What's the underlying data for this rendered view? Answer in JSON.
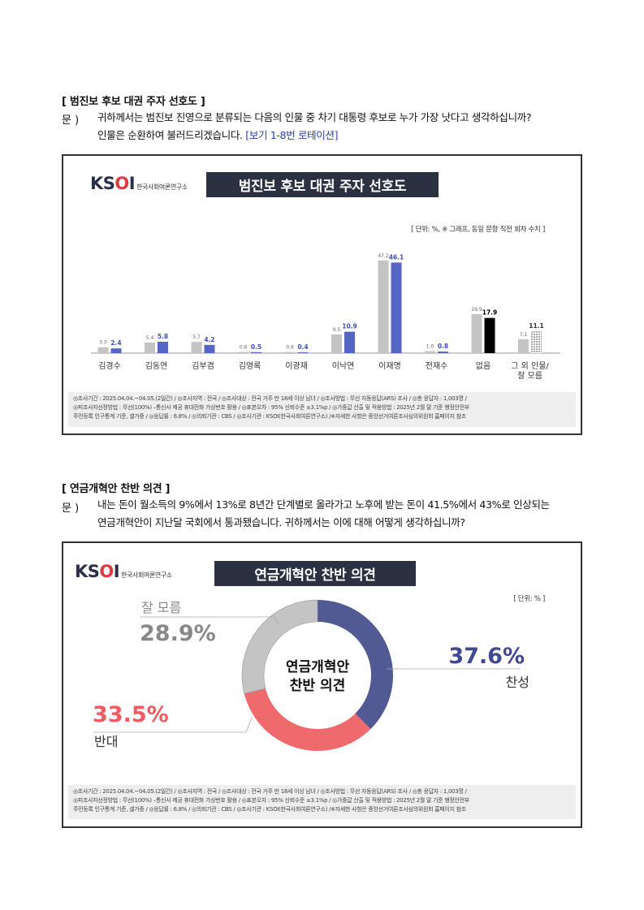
{
  "section1": {
    "title": "[ 범진보 후보 대권 주자 선호도 ]",
    "q_label": "문 )",
    "q_line1": "귀하께서는 범진보 진영으로 분류되는 다음의 인물 중 차기 대통령 후보로 누가 가장 낫다고 생각하십니까?",
    "q_line2_a": "인물은 순환하여 불러드리겠습니다. ",
    "q_line2_b": "[보기 1-8번 로테이션]"
  },
  "section2": {
    "title": "[ 연금개혁안 찬반 의견 ]",
    "q_label": "문 )",
    "q_line1": "내는 돈이 월소득의 9%에서 13%로 8년간 단계별로 올라가고 노후에 받는 돈이 41.5%에서 43%로 인상되는",
    "q_line2": "연금개혁안이 지난달 국회에서 통과됐습니다. 귀하께서는 이에 대해 어떻게 생각하십니까?"
  },
  "logo": {
    "main_k": "K",
    "main_s": "S",
    "main_o": "O",
    "main_i": "I",
    "sub": "한국사회여론연구소"
  },
  "footer": {
    "line1": "◎조사기간 : 2025.04.04.~04.05.(2일간) / ◎조사지역 : 전국 / ◎조사대상 : 전국 거주 만 18세 이상 남녀 / ◎조사방법 : 무선 자동응답(ARS) 조사 / ◎총 응답자 : 1,003명 /",
    "line2": "◎피조사자선정방법 : 무선(100%) –통신사 제공 휴대전화 가상번호 활용 / ◎표본오차 : 95% 신뢰수준 ±3.1%p / ◎가중값 산출 및 적용방법 : 2025년 2월 말 기준 행정안전부",
    "line3": "주민등록 인구통계 기준, 셀가중 / ◎응답률 : 6.8% / ◎의뢰기관 : CBS / ◎조사기관 : KSOI(한국사회여론연구소) /※자세한 사항은 중앙선거여론조사심의위원회 홈페이지 참조"
  },
  "colors": {
    "prev": "#c4c4c4",
    "curr": "#5566c2",
    "none_curr": "#000000",
    "agree": "#525a94",
    "oppose": "#ef6a6c",
    "dunno": "#c4c4c4"
  },
  "chart_data": [
    {
      "type": "bar",
      "title": "범진보 후보 대권 주자 선호도",
      "unit_note": "[ 단위: %, ※ 그래프, 동일 문항 직전 회차 수치 ]",
      "categories": [
        "김경수",
        "김동연",
        "김부겸",
        "김영록",
        "이광재",
        "이낙연",
        "이재명",
        "전재수",
        "없음",
        "그 외 인물/|잘 모름"
      ],
      "series": [
        {
          "values": [
            3.0,
            5.4,
            5.7,
            0.6,
            0.6,
            9.5,
            47.2,
            1.0,
            19.9,
            7.1
          ]
        },
        {
          "values": [
            2.4,
            5.8,
            4.2,
            0.5,
            0.4,
            10.9,
            46.1,
            0.8,
            17.9,
            11.1
          ]
        }
      ],
      "ylim": [
        0,
        50
      ]
    },
    {
      "type": "pie",
      "title": "연금개혁안 찬반 의견",
      "unit_note": "[ 단위: % ]",
      "center_label_1": "연금개혁안",
      "center_label_2": "찬반 의견",
      "slices": [
        {
          "label": "찬성",
          "value": 37.6,
          "display": "37.6%"
        },
        {
          "label": "반대",
          "value": 33.5,
          "display": "33.5%"
        },
        {
          "label": "잘 모름",
          "value": 28.9,
          "display": "28.9%"
        }
      ]
    }
  ]
}
